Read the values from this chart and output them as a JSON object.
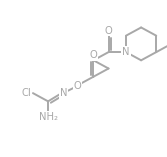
{
  "bg": "#ffffff",
  "lc": "#a8a8a8",
  "tc": "#a8a8a8",
  "lw": 1.4,
  "fs": 7.2,
  "figsize": [
    1.67,
    1.57
  ],
  "dpi": 100,
  "xlim": [
    -0.5,
    10.5
  ],
  "ylim": [
    -0.5,
    10.5
  ]
}
